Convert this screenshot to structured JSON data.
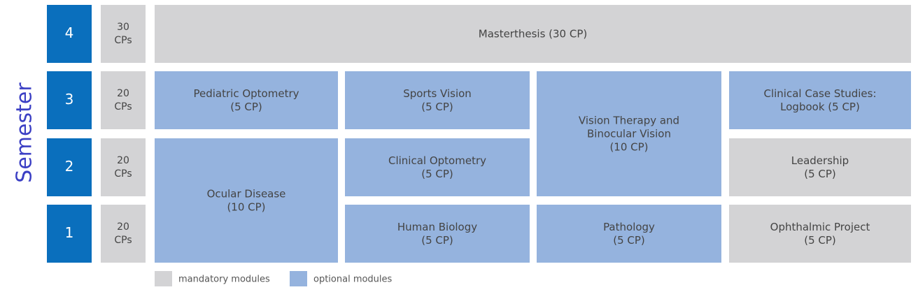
{
  "axis_label": "Semester",
  "semesters": [
    {
      "number": "4",
      "credits": [
        "30",
        "CPs"
      ]
    },
    {
      "number": "3",
      "credits": [
        "20",
        "CPs"
      ]
    },
    {
      "number": "2",
      "credits": [
        "20",
        "CPs"
      ]
    },
    {
      "number": "1",
      "credits": [
        "20",
        "CPs"
      ]
    }
  ],
  "modules": [
    {
      "lines": [
        "Masterthesis (30 CP)"
      ],
      "color": "#d3d3d5"
    },
    {
      "lines": [
        "Pediatric Optometry",
        "(5 CP)"
      ],
      "color": "#95b3de"
    },
    {
      "lines": [
        "Sports Vision",
        "(5 CP)"
      ],
      "color": "#95b3de"
    },
    {
      "lines": [
        "Vision Therapy and",
        "Binocular Vision",
        "(10 CP)"
      ],
      "color": "#95b3de"
    },
    {
      "lines": [
        "Clinical Case Studies:",
        "Logbook (5 CP)"
      ],
      "color": "#95b3de"
    },
    {
      "lines": [
        "Ocular Disease",
        "(10 CP)"
      ],
      "color": "#95b3de"
    },
    {
      "lines": [
        "Clinical Optometry",
        "(5 CP)"
      ],
      "color": "#95b3de"
    },
    {
      "lines": [
        "Leadership",
        "(5 CP)"
      ],
      "color": "#d3d3d5"
    },
    {
      "lines": [
        "Human Biology",
        "(5 CP)"
      ],
      "color": "#95b3de"
    },
    {
      "lines": [
        "Pathology",
        "(5 CP)"
      ],
      "color": "#95b3de"
    },
    {
      "lines": [
        "Ophthalmic Project",
        "(5 CP)"
      ],
      "color": "#d3d3d5"
    }
  ],
  "legend": [
    {
      "label": "mandatory modules",
      "color": "#d3d3d5"
    },
    {
      "label": "optional modules",
      "color": "#95b3de"
    }
  ],
  "semester_color": "#0a6fbd",
  "credit_color": "#d3d3d5",
  "label_color": "#3b3fc4"
}
